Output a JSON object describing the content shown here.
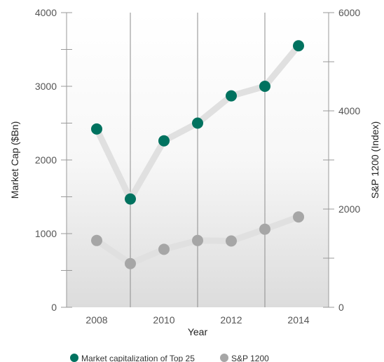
{
  "chart_data": {
    "type": "line",
    "xlabel": "Year",
    "ylabel": "Market Cap ($Bn)",
    "y2label": "S&P 1200 (Index)",
    "x": [
      2008,
      2009,
      2010,
      2011,
      2012,
      2013,
      2014
    ],
    "x_tick_labels": [
      "2008",
      "2010",
      "2012",
      "2014"
    ],
    "ylim": [
      0,
      4000
    ],
    "y_ticks": [
      "0",
      "1000",
      "2000",
      "3000",
      "4000"
    ],
    "y2lim": [
      0,
      6000
    ],
    "y2_ticks": [
      "0",
      "2000",
      "4000",
      "6000"
    ],
    "series": [
      {
        "name": "Market capitalization of Top 25",
        "axis": "left",
        "color": "#00725f",
        "values": [
          2420,
          1470,
          2260,
          2500,
          2870,
          3000,
          3550
        ]
      },
      {
        "name": "S&P 1200",
        "axis": "right",
        "color": "#a6a6a6",
        "values": [
          1360,
          890,
          1180,
          1360,
          1350,
          1590,
          1840
        ]
      }
    ],
    "grid": "vertical lines at odd years",
    "legend_position": "bottom"
  }
}
